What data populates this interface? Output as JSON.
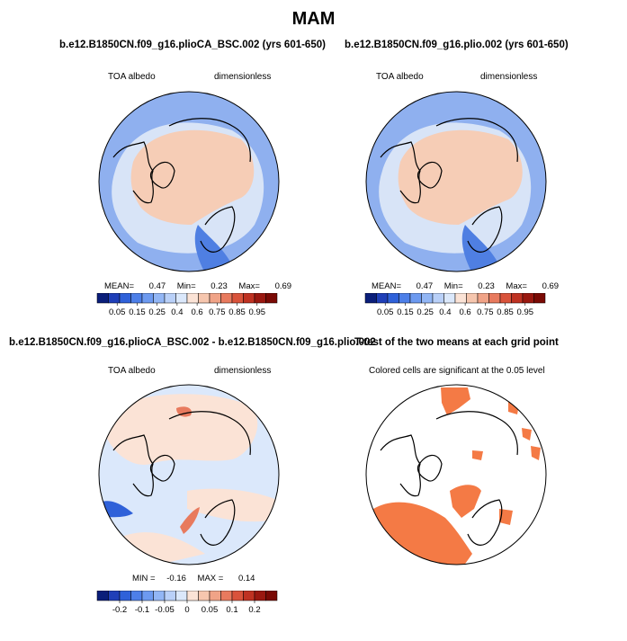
{
  "figure": {
    "title": "MAM"
  },
  "chart_data": [
    {
      "type": "heatmap",
      "title": "b.e12.B1850CN.f09_g16.plioCA_BSC.002 (yrs 601-650)",
      "left_label": "TOA albedo",
      "right_label": "dimensionless",
      "stats": {
        "mean_label": "MEAN=",
        "mean": "0.47",
        "min_label": "Min=",
        "min": "0.23",
        "max_label": "Max=",
        "max": "0.69"
      },
      "colorbar": {
        "colors": [
          "#0a1e7a",
          "#1f3fb8",
          "#2f61d9",
          "#4d7fe8",
          "#6d9af0",
          "#92b6f5",
          "#b9d0f8",
          "#dbe8fb",
          "#fbe3d6",
          "#f6c6ae",
          "#f0a387",
          "#e87a5e",
          "#d9533b",
          "#bf3222",
          "#9a1810",
          "#7a0a05"
        ],
        "tick_labels": [
          "0.05",
          "0.15",
          "0.25",
          "0.4",
          "0.6",
          "0.75",
          "0.85",
          "0.95"
        ]
      }
    },
    {
      "type": "heatmap",
      "title": "b.e12.B1850CN.f09_g16.plio.002 (yrs 601-650)",
      "left_label": "TOA albedo",
      "right_label": "dimensionless",
      "stats": {
        "mean_label": "MEAN=",
        "mean": "0.47",
        "min_label": "Min=",
        "min": "0.23",
        "max_label": "Max=",
        "max": "0.69"
      },
      "colorbar": {
        "colors": [
          "#0a1e7a",
          "#1f3fb8",
          "#2f61d9",
          "#4d7fe8",
          "#6d9af0",
          "#92b6f5",
          "#b9d0f8",
          "#dbe8fb",
          "#fbe3d6",
          "#f6c6ae",
          "#f0a387",
          "#e87a5e",
          "#d9533b",
          "#bf3222",
          "#9a1810",
          "#7a0a05"
        ],
        "tick_labels": [
          "0.05",
          "0.15",
          "0.25",
          "0.4",
          "0.6",
          "0.75",
          "0.85",
          "0.95"
        ]
      }
    },
    {
      "type": "heatmap",
      "title": "b.e12.B1850CN.f09_g16.plioCA_BSC.002 - b.e12.B1850CN.f09_g16.plio.002",
      "left_label": "TOA albedo",
      "right_label": "dimensionless",
      "stats": {
        "min_label": "MIN =",
        "min": "-0.16",
        "max_label": "MAX =",
        "max": "0.14"
      },
      "colorbar": {
        "colors": [
          "#0a1e7a",
          "#1f3fb8",
          "#2f61d9",
          "#4d7fe8",
          "#6d9af0",
          "#92b6f5",
          "#b9d0f8",
          "#dbe8fb",
          "#fbe3d6",
          "#f6c6ae",
          "#f0a387",
          "#e87a5e",
          "#d9533b",
          "#bf3222",
          "#9a1810",
          "#7a0a05"
        ],
        "tick_labels": [
          "-0.2",
          "-0.1",
          "-0.05",
          "0",
          "0.05",
          "0.1",
          "0.2"
        ]
      }
    },
    {
      "type": "heatmap",
      "title": "T-test of the two means at each grid point",
      "subtitle": "Colored cells are significant at the 0.05 level"
    }
  ]
}
